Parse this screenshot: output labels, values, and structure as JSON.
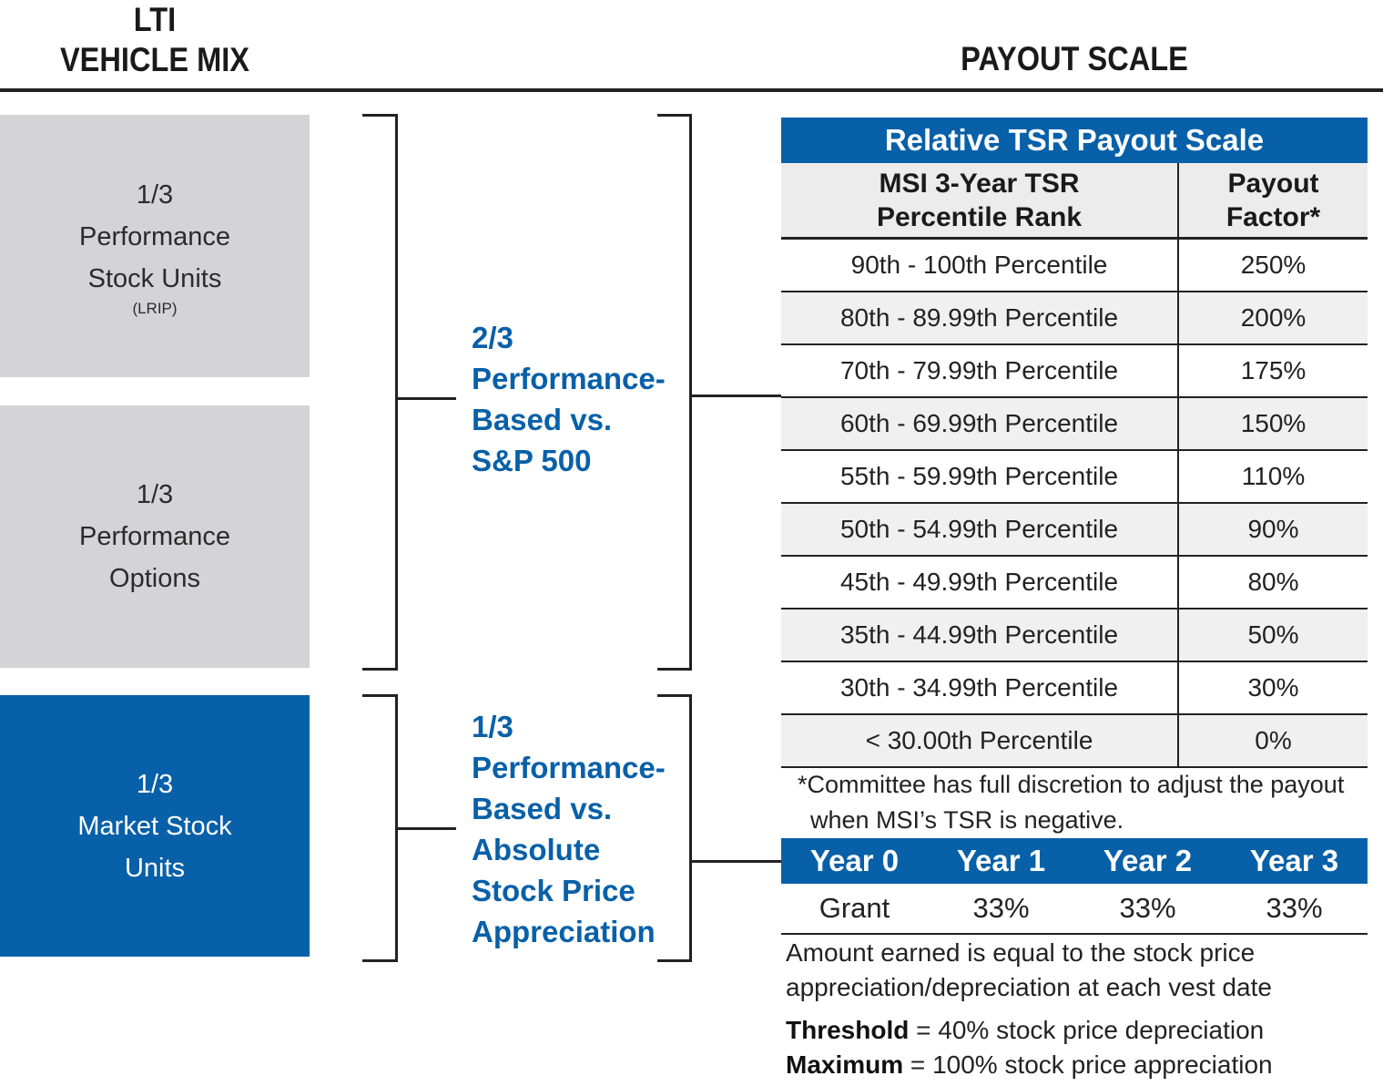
{
  "headers": {
    "left_line1": "LTI",
    "left_line2": "VEHICLE MIX",
    "right": "PAYOUT SCALE"
  },
  "vehicles": [
    {
      "fraction": "1/3",
      "line1": "Performance",
      "line2": "Stock Units",
      "note": "(LRIP)"
    },
    {
      "fraction": "1/3",
      "line1": "Performance",
      "line2": "Options"
    },
    {
      "fraction": "1/3",
      "line1": "Market Stock",
      "line2": "Units"
    }
  ],
  "groups": [
    {
      "lines": [
        "2/3",
        "Performance-",
        "Based vs.",
        "S&P 500"
      ]
    },
    {
      "lines": [
        "1/3",
        "Performance-",
        "Based vs.",
        "Absolute",
        "Stock Price",
        "Appreciation"
      ]
    }
  ],
  "tsr_table": {
    "title": "Relative TSR Payout Scale",
    "col1_header": [
      "MSI 3-Year TSR",
      "Percentile Rank"
    ],
    "col2_header": [
      "Payout",
      "Factor*"
    ],
    "rows": [
      {
        "rank": "90th - 100th Percentile",
        "factor": "250%"
      },
      {
        "rank": "80th - 89.99th Percentile",
        "factor": "200%"
      },
      {
        "rank": "70th - 79.99th Percentile",
        "factor": "175%"
      },
      {
        "rank": "60th - 69.99th Percentile",
        "factor": "150%"
      },
      {
        "rank": "55th - 59.99th Percentile",
        "factor": "110%"
      },
      {
        "rank": "50th - 54.99th Percentile",
        "factor": "90%"
      },
      {
        "rank": "45th - 49.99th Percentile",
        "factor": "80%"
      },
      {
        "rank": "35th - 44.99th Percentile",
        "factor": "50%"
      },
      {
        "rank": "30th - 34.99th Percentile",
        "factor": "30%"
      },
      {
        "rank": "< 30.00th Percentile",
        "factor": "0%"
      }
    ],
    "footnote_line1": "*Committee has full discretion to adjust the payout",
    "footnote_line2": "when MSI’s TSR is negative."
  },
  "vesting_table": {
    "headers": [
      "Year 0",
      "Year 1",
      "Year 2",
      "Year 3"
    ],
    "values": [
      "Grant",
      "33%",
      "33%",
      "33%"
    ]
  },
  "market_notes": {
    "line1": "Amount earned is equal to the stock price",
    "line2": "appreciation/depreciation at each vest date",
    "threshold_label": "Threshold",
    "threshold_text": " = 40% stock price depreciation",
    "maximum_label": "Maximum",
    "maximum_text": " = 100% stock price appreciation"
  },
  "colors": {
    "brand_blue": "#0860a8",
    "box_gray": "#d4d4d6"
  }
}
